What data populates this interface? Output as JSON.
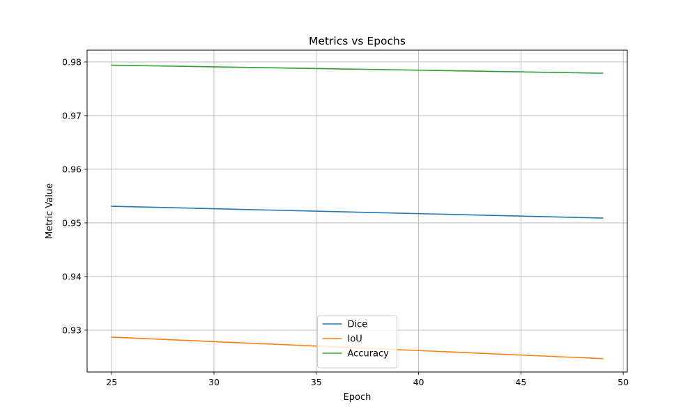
{
  "chart_data": {
    "type": "line",
    "title": "Metrics vs Epochs",
    "xlabel": "Epoch",
    "ylabel": "Metric Value",
    "xlim": [
      23.8,
      50.2
    ],
    "ylim": [
      0.9222,
      0.9822
    ],
    "xticks": [
      25,
      30,
      35,
      40,
      45,
      50
    ],
    "xtick_labels": [
      "25",
      "30",
      "35",
      "40",
      "45",
      "50"
    ],
    "yticks": [
      0.93,
      0.94,
      0.95,
      0.96,
      0.97,
      0.98
    ],
    "ytick_labels": [
      "0.93",
      "0.94",
      "0.95",
      "0.96",
      "0.97",
      "0.98"
    ],
    "grid": true,
    "legend_position": "bottom-center",
    "x": [
      25,
      49
    ],
    "series": [
      {
        "name": "Dice",
        "color": "#1f77b4",
        "values": [
          0.9531,
          0.9509
        ]
      },
      {
        "name": "IoU",
        "color": "#ff7f0e",
        "values": [
          0.9287,
          0.9247
        ]
      },
      {
        "name": "Accuracy",
        "color": "#2ca02c",
        "values": [
          0.9794,
          0.9779
        ]
      }
    ]
  }
}
